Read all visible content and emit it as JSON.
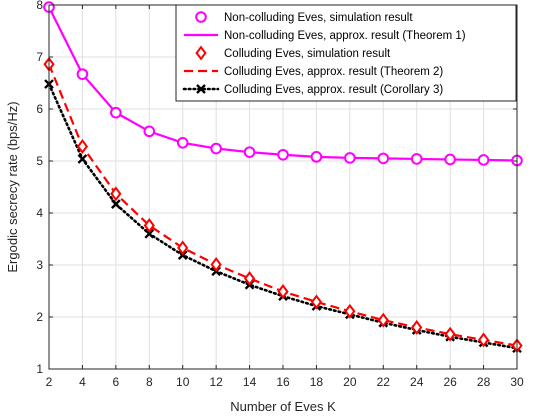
{
  "chart_data": {
    "type": "line",
    "xlabel": "Number of Eves K",
    "ylabel": "Ergodic secrecy rate (bps/Hz)",
    "xlim": [
      2,
      30
    ],
    "ylim": [
      1,
      8
    ],
    "xticks": [
      2,
      4,
      6,
      8,
      10,
      12,
      14,
      16,
      18,
      20,
      22,
      24,
      26,
      28,
      30
    ],
    "yticks": [
      1,
      2,
      3,
      4,
      5,
      6,
      7,
      8
    ],
    "grid": true,
    "legend_position": "top-right",
    "x": [
      2,
      4,
      6,
      8,
      10,
      12,
      14,
      16,
      18,
      20,
      22,
      24,
      26,
      28,
      30
    ],
    "series": [
      {
        "name": "Non-colluding Eves, simulation  result",
        "color": "#ff00ff",
        "line": "none",
        "marker": "circle",
        "values": [
          7.96,
          6.67,
          5.93,
          5.57,
          5.35,
          5.24,
          5.17,
          5.12,
          5.08,
          5.06,
          5.05,
          5.04,
          5.03,
          5.02,
          5.01
        ]
      },
      {
        "name": "Non-colluding Eves,  approx. result (Theorem 1)",
        "color": "#ff00ff",
        "line": "solid",
        "marker": "none",
        "values": [
          7.96,
          6.67,
          5.93,
          5.57,
          5.35,
          5.24,
          5.17,
          5.12,
          5.08,
          5.06,
          5.05,
          5.04,
          5.03,
          5.02,
          5.01
        ]
      },
      {
        "name": "Colluding  Eves, simulation  result",
        "color": "#ff0000",
        "line": "none",
        "marker": "diamond",
        "values": [
          6.86,
          5.28,
          4.37,
          3.76,
          3.33,
          3.01,
          2.74,
          2.49,
          2.29,
          2.11,
          1.94,
          1.8,
          1.67,
          1.56,
          1.45
        ]
      },
      {
        "name": "Colluding Eves,  approx. result (Theorem 2)",
        "color": "#ff0000",
        "line": "dashed",
        "marker": "none",
        "values": [
          6.86,
          5.28,
          4.37,
          3.76,
          3.33,
          3.01,
          2.74,
          2.49,
          2.29,
          2.11,
          1.94,
          1.8,
          1.67,
          1.56,
          1.45
        ]
      },
      {
        "name": "Colluding  Eves, approx. result (Corollary 3)",
        "color": "#000000",
        "line": "dotted",
        "marker": "x",
        "values": [
          6.48,
          5.04,
          4.17,
          3.6,
          3.19,
          2.88,
          2.62,
          2.4,
          2.21,
          2.05,
          1.89,
          1.75,
          1.62,
          1.51,
          1.4
        ]
      }
    ]
  }
}
